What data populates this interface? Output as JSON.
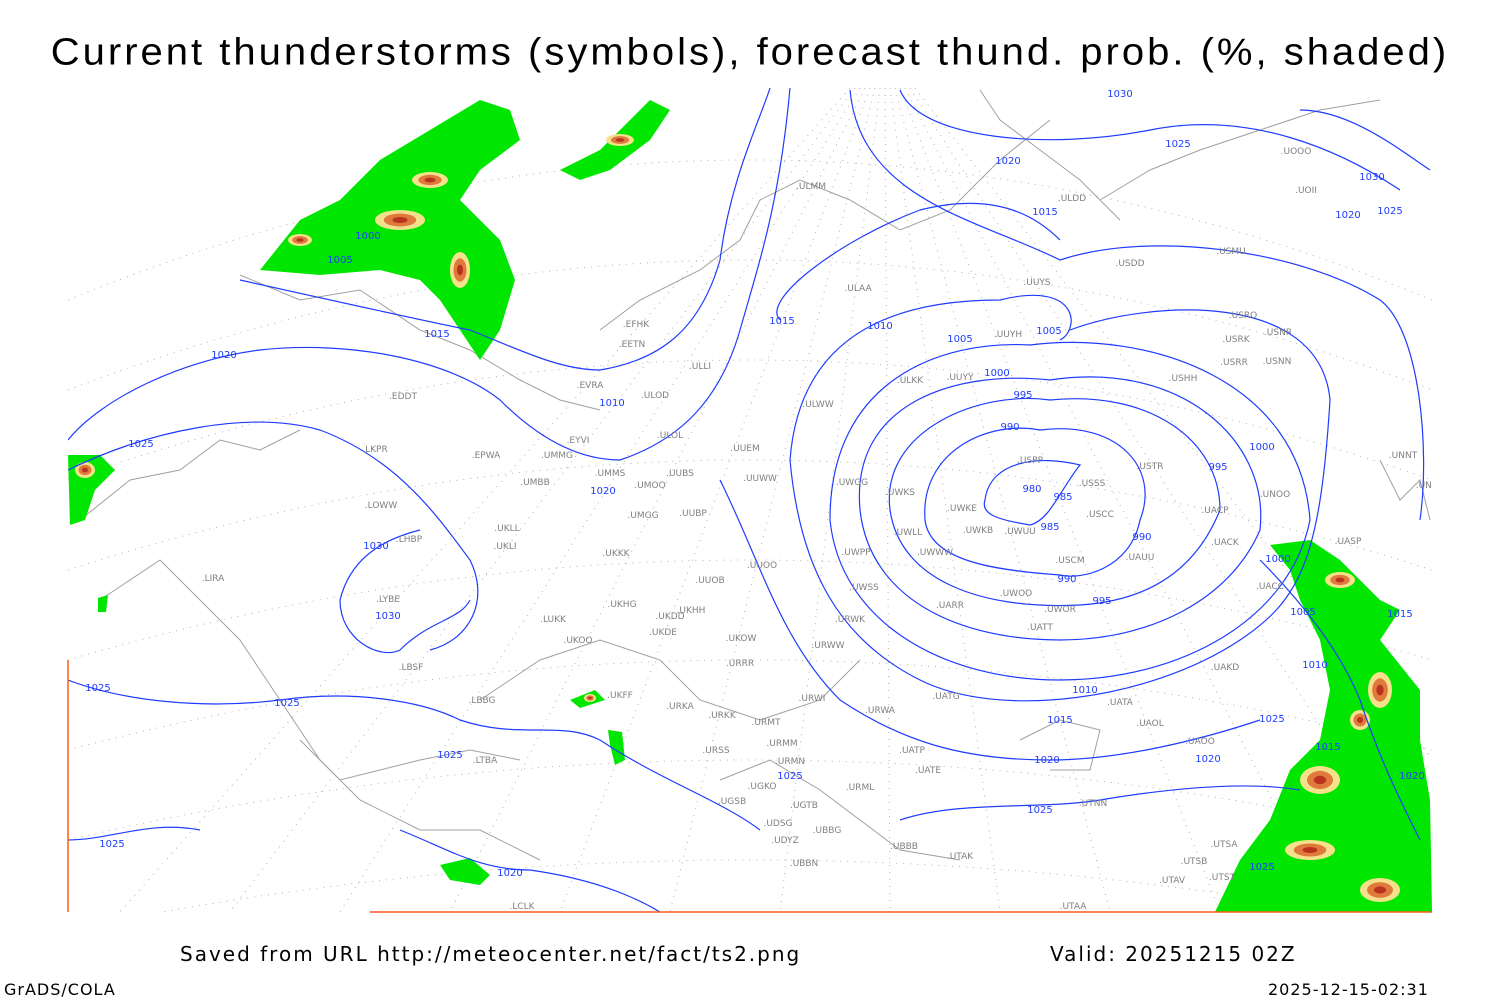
{
  "title": "Current thunderstorms (symbols), forecast thund. prob. (%, shaded)",
  "footer": {
    "source": "Saved from URL http://meteocenter.net/fact/ts2.png",
    "valid": "Valid: 20251215 02Z",
    "software": "GrADS/COLA",
    "timestamp": "2025-12-15-02:31"
  },
  "colors": {
    "isobar": "#1f3cff",
    "coast": "#a0a0a0",
    "prob_low": "#00e600",
    "prob_mid": "#f5e08c",
    "prob_high": "#e07a3c",
    "prob_max": "#b8321e"
  },
  "isobar_labels": [
    "980",
    "985",
    "990",
    "995",
    "1000",
    "1005",
    "1015",
    "1020",
    "1025",
    "1000",
    "1005",
    "1010",
    "1015",
    "1020",
    "1025",
    "1030",
    "1030",
    "1025",
    "1025",
    "1030",
    "1020",
    "1015",
    "1010",
    "1005",
    "1000",
    "995",
    "990",
    "985",
    "990",
    "995",
    "1010",
    "1015",
    "1020",
    "1025",
    "1000",
    "1005",
    "1010",
    "1015",
    "1015",
    "1020",
    "1025",
    "1020",
    "1025",
    "1025",
    "1025",
    "1020",
    "1025",
    "1030",
    "1020",
    "1025"
  ],
  "stations": [
    "EFHK",
    "EETN",
    "EVRA",
    "ULLI",
    "ULOD",
    "EDDT",
    "EYVI",
    "ULOL",
    "UUEM",
    "EPWA",
    "UMMG",
    "LKPR",
    "UMMS",
    "UUBS",
    "UMOO",
    "UMBB",
    "UUWW",
    "LOWW",
    "UMGG",
    "UUBP",
    "UKLL",
    "LHBP",
    "UKLI",
    "UKKK",
    "LIRA",
    "UUOO",
    "UUOB",
    "LYBE",
    "UKHG",
    "UKHH",
    "UKDD",
    "LUKK",
    "UKDE",
    "UKOO",
    "UKOW",
    "LBSF",
    "URRR",
    "UKFF",
    "LBBG",
    "URKA",
    "URKK",
    "URWI",
    "URMT",
    "UATG",
    "URWA",
    "LTBA",
    "URSS",
    "URMM",
    "URMN",
    "UATP",
    "UATE",
    "URML",
    "UGSB",
    "UGKO",
    "UGTB",
    "UDSG",
    "UBBG",
    "UBBB",
    "UBBN",
    "UDYZ",
    "UTAK",
    "UTNN",
    "UTAA",
    "LCLK",
    "ULMM",
    "ULAA",
    "ULDD",
    "UUYS",
    "UUYH",
    "ULKK",
    "UUYY",
    "ULWW",
    "USHH",
    "USRR",
    "USNN",
    "USRK",
    "USNR",
    "USRO",
    "USMU",
    "USDD",
    "UOOO",
    "UOII",
    "UNNT",
    "UNBB",
    "UNOO",
    "UACP",
    "UACK",
    "UASP",
    "UACC",
    "UAKD",
    "UATA",
    "UAOL",
    "UAOO",
    "USTR",
    "USSS",
    "USPP",
    "USCC",
    "USCM",
    "UAUU",
    "UWKE",
    "UWKB",
    "UWUU",
    "UWKS",
    "UWGG",
    "UWLL",
    "UWWW",
    "UWPP",
    "UWSS",
    "UARR",
    "UWOO",
    "UWOR",
    "UATT",
    "URWK",
    "URWW",
    "UTSA",
    "UTSB",
    "UTAV",
    "UTST"
  ]
}
